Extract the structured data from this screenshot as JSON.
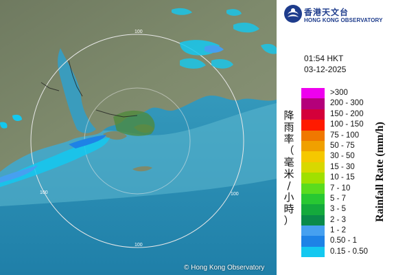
{
  "map": {
    "range_labels": [
      "100",
      "100",
      "100",
      "100"
    ],
    "copyright": "© Hong Kong Observatory"
  },
  "logo": {
    "name_zh": "香港天文台",
    "name_en": "HONG KONG OBSERVATORY"
  },
  "timestamp": {
    "time": "01:54 HKT",
    "date": "03-12-2025"
  },
  "legend": {
    "title_en": "Rainfall Rate (mm/h)",
    "title_zh": "降雨率（毫米/小時）",
    "items": [
      {
        "label": ">300",
        "color": "#ee00ee"
      },
      {
        "label": "200 - 300",
        "color": "#b4007a"
      },
      {
        "label": "150 - 200",
        "color": "#d4003a"
      },
      {
        "label": "100 - 150",
        "color": "#ff1a00"
      },
      {
        "label": "75 - 100",
        "color": "#f07800"
      },
      {
        "label": "50 - 75",
        "color": "#f0a000"
      },
      {
        "label": "30 - 50",
        "color": "#f5c800"
      },
      {
        "label": "15 - 30",
        "color": "#d8d800"
      },
      {
        "label": "10 - 15",
        "color": "#a0e000"
      },
      {
        "label": "7 - 10",
        "color": "#5adc1e"
      },
      {
        "label": "5 - 7",
        "color": "#28c832"
      },
      {
        "label": "3 - 5",
        "color": "#14aa3c"
      },
      {
        "label": "2 - 3",
        "color": "#0a8a4a"
      },
      {
        "label": "1 - 2",
        "color": "#46a0f0"
      },
      {
        "label": "0.50 - 1",
        "color": "#1e82e6"
      },
      {
        "label": "0.15 - 0.50",
        "color": "#14c8f0"
      }
    ]
  }
}
